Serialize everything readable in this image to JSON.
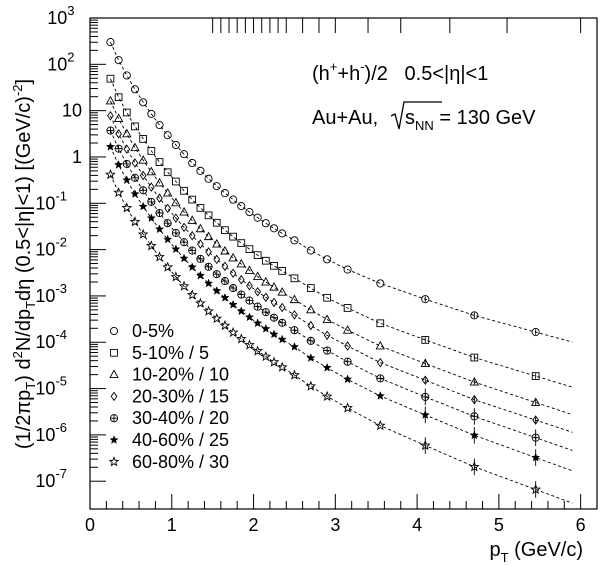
{
  "chart_data": {
    "type": "scatter",
    "title": "(h⁺+h⁻)/2   0.5<|η|<1",
    "subtitle": "Au+Au, √s_NN = 130 GeV",
    "title_parts": {
      "pre": "(h",
      "plus": "+",
      "mid": "+h",
      "minus": "-",
      "post": ")/2   0.5<|η|<1"
    },
    "subtitle_parts": {
      "pre": "Au+Au, ",
      "root": "s",
      "sub": "NN",
      "post": " = 130 GeV"
    },
    "xlabel": "p_T (GeV/c)",
    "xlabel_parts": {
      "main": "p",
      "sub": "T",
      "rest": " (GeV/c)"
    },
    "ylabel": "(1/2πp_T) d²N/dp_Tdη (0.5<|η|<1) [(GeV/c)⁻²]",
    "ylabel_parts": {
      "a": "(1/2πp",
      "a_sub": "T",
      "b": ") d",
      "b_sup": "2",
      "c": "N/dp",
      "c_sub": "T",
      "d": "dη (0.5<|η|<1) [(GeV/c)",
      "d_sup": "-2",
      "e": "]"
    },
    "xlim": [
      0,
      6.2
    ],
    "ylim_exp": [
      -7.6,
      3
    ],
    "y_scale": "log",
    "x_ticks": [
      "0",
      "1",
      "2",
      "3",
      "4",
      "5",
      "6"
    ],
    "y_ticks_exp": [
      "3",
      "2",
      "1",
      "0",
      "-1",
      "-2",
      "-3",
      "-4",
      "-5",
      "-6",
      "-7"
    ],
    "y_tick_mantissa": "10",
    "grid": false,
    "legend_placement": "bottom-left",
    "bin_edges": [
      1.5,
      1.6,
      1.7,
      1.8,
      1.9,
      2.0,
      2.1,
      2.2,
      2.3,
      2.4,
      2.6,
      2.8,
      3.0,
      3.4,
      3.8,
      4.4,
      5.1,
      6.0
    ],
    "x": [
      0.25,
      0.35,
      0.45,
      0.55,
      0.65,
      0.75,
      0.85,
      0.95,
      1.05,
      1.15,
      1.25,
      1.35,
      1.45,
      1.55,
      1.65,
      1.75,
      1.85,
      1.95,
      2.05,
      2.15,
      2.25,
      2.35,
      2.5,
      2.7,
      2.9,
      3.15,
      3.55,
      4.1,
      4.7,
      5.45
    ],
    "series": [
      {
        "name": "0-5%",
        "marker": "circle",
        "y_log10": [
          2.48,
          2.09,
          1.76,
          1.46,
          1.18,
          0.93,
          0.69,
          0.47,
          0.26,
          0.06,
          -0.13,
          -0.3,
          -0.47,
          -0.63,
          -0.78,
          -0.92,
          -1.06,
          -1.19,
          -1.31,
          -1.43,
          -1.54,
          -1.65,
          -1.8,
          -2.02,
          -2.21,
          -2.43,
          -2.73,
          -3.07,
          -3.42,
          -3.78
        ]
      },
      {
        "name": "5-10% / 5",
        "marker": "square",
        "y_log10": [
          1.69,
          1.29,
          0.96,
          0.66,
          0.39,
          0.13,
          -0.11,
          -0.33,
          -0.53,
          -0.73,
          -0.92,
          -1.1,
          -1.26,
          -1.42,
          -1.58,
          -1.72,
          -1.86,
          -1.99,
          -2.12,
          -2.24,
          -2.35,
          -2.46,
          -2.62,
          -2.83,
          -3.04,
          -3.26,
          -3.59,
          -3.95,
          -4.33,
          -4.73
        ]
      },
      {
        "name": "10-20% / 10",
        "marker": "triangle",
        "y_log10": [
          1.21,
          0.83,
          0.5,
          0.2,
          -0.07,
          -0.32,
          -0.56,
          -0.78,
          -0.99,
          -1.19,
          -1.37,
          -1.55,
          -1.72,
          -1.88,
          -2.03,
          -2.18,
          -2.31,
          -2.45,
          -2.58,
          -2.7,
          -2.81,
          -2.92,
          -3.08,
          -3.3,
          -3.51,
          -3.74,
          -4.08,
          -4.46,
          -4.86,
          -5.3
        ]
      },
      {
        "name": "20-30% / 15",
        "marker": "diamond",
        "y_log10": [
          0.89,
          0.5,
          0.17,
          -0.13,
          -0.4,
          -0.65,
          -0.89,
          -1.11,
          -1.32,
          -1.52,
          -1.7,
          -1.88,
          -2.05,
          -2.21,
          -2.36,
          -2.51,
          -2.65,
          -2.78,
          -2.91,
          -3.03,
          -3.14,
          -3.25,
          -3.41,
          -3.64,
          -3.85,
          -4.08,
          -4.44,
          -4.82,
          -5.24,
          -5.68
        ]
      },
      {
        "name": "30-40% / 20",
        "marker": "cross",
        "y_log10": [
          0.57,
          0.18,
          -0.15,
          -0.45,
          -0.72,
          -0.97,
          -1.21,
          -1.43,
          -1.64,
          -1.84,
          -2.02,
          -2.2,
          -2.37,
          -2.53,
          -2.68,
          -2.83,
          -2.97,
          -3.1,
          -3.23,
          -3.35,
          -3.47,
          -3.58,
          -3.74,
          -3.97,
          -4.18,
          -4.42,
          -4.78,
          -5.18,
          -5.6,
          -6.06
        ]
      },
      {
        "name": "40-60% / 25",
        "marker": "star5",
        "y_log10": [
          0.22,
          -0.17,
          -0.5,
          -0.8,
          -1.07,
          -1.32,
          -1.56,
          -1.78,
          -1.99,
          -2.19,
          -2.38,
          -2.56,
          -2.73,
          -2.89,
          -3.04,
          -3.19,
          -3.33,
          -3.46,
          -3.59,
          -3.71,
          -3.83,
          -3.94,
          -4.1,
          -4.34,
          -4.55,
          -4.8,
          -5.16,
          -5.57,
          -6.01,
          -6.49
        ]
      },
      {
        "name": "60-80% / 30",
        "marker": "star-open",
        "y_log10": [
          -0.38,
          -0.77,
          -1.1,
          -1.4,
          -1.67,
          -1.92,
          -2.16,
          -2.38,
          -2.59,
          -2.79,
          -2.98,
          -3.16,
          -3.33,
          -3.49,
          -3.64,
          -3.79,
          -3.93,
          -4.06,
          -4.19,
          -4.31,
          -4.43,
          -4.54,
          -4.71,
          -4.95,
          -5.17,
          -5.42,
          -5.8,
          -6.23,
          -6.69,
          -7.18
        ]
      }
    ]
  }
}
